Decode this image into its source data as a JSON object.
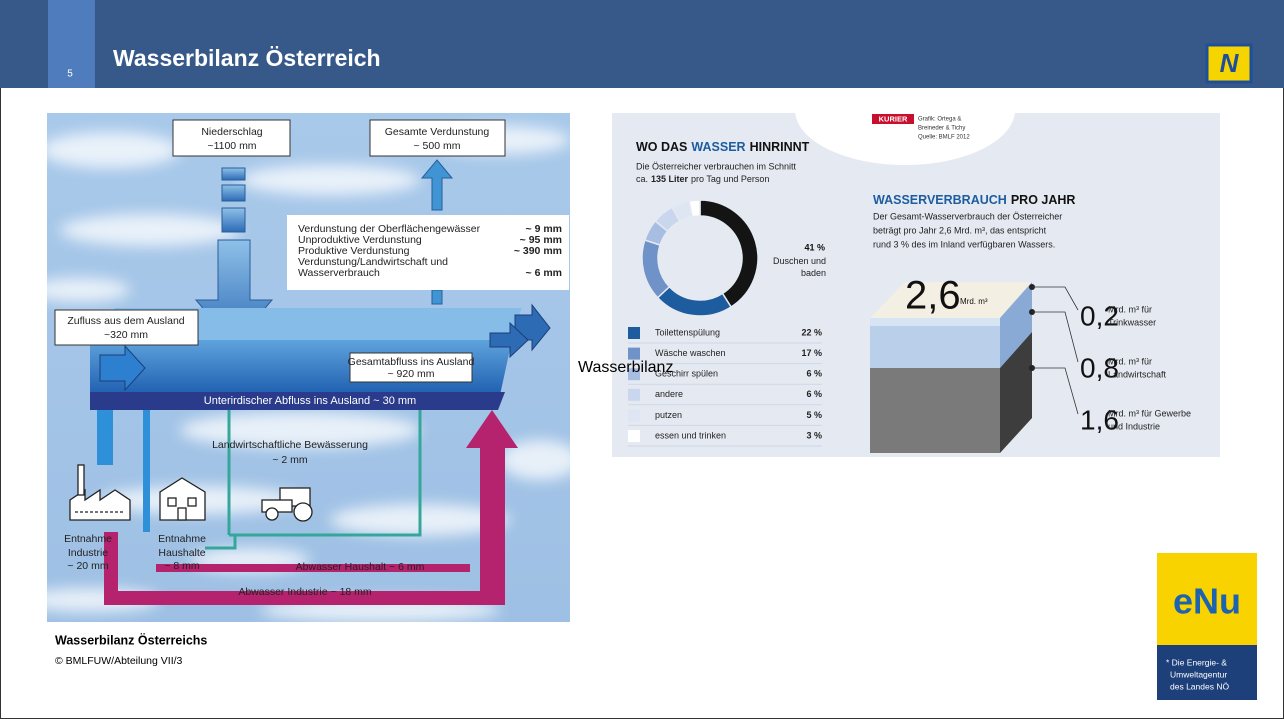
{
  "header": {
    "number": "5",
    "title": "Wasserbilanz Österreich",
    "logo": "N"
  },
  "diagram": {
    "precipitation": [
      "Niederschlag",
      "~1100 mm"
    ],
    "evaporation_total": [
      "Gesamte Verdunstung",
      "~ 500 mm"
    ],
    "evaporation_items": [
      {
        "label": [
          "Verdunstung der Oberflächengewässer"
        ],
        "value": "~ 9 mm"
      },
      {
        "label": [
          "Unproduktive Verdunstung"
        ],
        "value": "~ 95 mm"
      },
      {
        "label": [
          "Produktive Verdunstung"
        ],
        "value": "~ 390 mm"
      },
      {
        "label": [
          "Verdunstung/Landwirtschaft und",
          "Wasserverbrauch"
        ],
        "value": "~ 6 mm"
      }
    ],
    "inflow": [
      "Zufluss aus dem Ausland",
      "~320 mm"
    ],
    "outflow": [
      "Gesamtabfluss ins Ausland",
      "~ 920 mm"
    ],
    "groundwater": "Unterirdischer Abfluss ins Ausland ~ 30 mm",
    "irrigation": [
      "Landwirtschaftliche Bewässerung",
      "~ 2 mm"
    ],
    "industry_withdrawal": [
      "Entnahme",
      "Industrie",
      "~ 20 mm"
    ],
    "household_withdrawal": [
      "Entnahme",
      "Haushalte",
      "~ 8 mm"
    ],
    "household_wastewater": "Abwasser Haushalt ~ 6 mm",
    "industry_wastewater": "Abwasser Industrie ~ 18 mm"
  },
  "image_alt": "Wasserbilanz",
  "caption": {
    "title": "Wasserbilanz Österreichs",
    "credit": "© BMLFUW/Abteilung VII/3"
  },
  "infographic": {
    "publisher": "KURIER",
    "credits": [
      "Grafik: Ortega &",
      "Breineder & Tichy",
      "Quelle: BMLF 2012"
    ],
    "usage": {
      "heading": [
        "WO DAS",
        "WASSER",
        "HINRINNT"
      ],
      "intro": [
        [
          "Die Österreicher verbrauchen im Schnitt"
        ],
        [
          "ca.",
          "135 Liter",
          "pro Tag und Person"
        ]
      ],
      "segments": [
        {
          "name": "Duschen und baden",
          "value": 41,
          "label": "41 %",
          "color": "#141414"
        },
        {
          "name": "Toilettenspülung",
          "value": 22,
          "label": "22 %",
          "color": "#1d5c9e"
        },
        {
          "name": "Wäsche waschen",
          "value": 17,
          "label": "17 %",
          "color": "#6f92c8"
        },
        {
          "name": "Geschirr spülen",
          "value": 6,
          "label": "6 %",
          "color": "#a7bde2"
        },
        {
          "name": "andere",
          "value": 6,
          "label": "6 %",
          "color": "#c9d6ee"
        },
        {
          "name": "putzen",
          "value": 5,
          "label": "5 %",
          "color": "#dee6f4"
        },
        {
          "name": "essen und trinken",
          "value": 3,
          "label": "3 %",
          "color": "#ffffff"
        }
      ]
    },
    "annual": {
      "heading": [
        "WASSERVERBRAUCH",
        "PRO JAHR"
      ],
      "text": [
        "Der Gesamt-Wasserverbrauch der Österreicher",
        "beträgt pro Jahr 2,6 Mrd. m³, das entspricht",
        "rund 3 % des im Inland verfügbaren Wassers."
      ],
      "total": {
        "value": "2,6",
        "unit": "Mrd. m³"
      },
      "parts": [
        {
          "value": "0,2",
          "unit": "Mrd. m³ für",
          "use": "Trinkwasser"
        },
        {
          "value": "0,8",
          "unit": "Mrd. m³ für",
          "use": "Landwirtschaft"
        },
        {
          "value": "1,6",
          "unit": "Mrd. m³ für Gewerbe",
          "use": "und Industrie"
        }
      ]
    }
  },
  "enu": {
    "word": "eNu",
    "tagline": [
      "* Die Energie- &",
      "Umweltagentur",
      "des Landes NÖ"
    ]
  }
}
